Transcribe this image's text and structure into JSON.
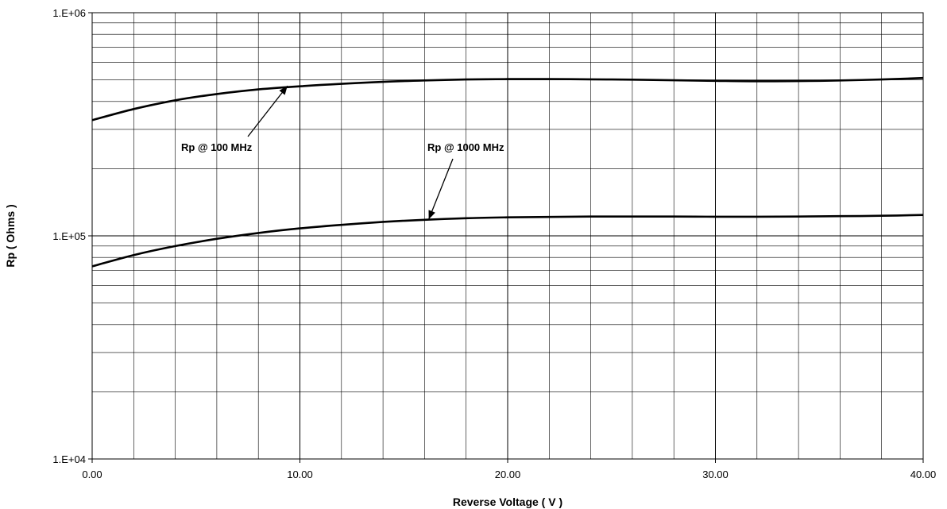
{
  "chart_data": {
    "type": "line",
    "title": "",
    "xlabel": "Reverse Voltage ( V )",
    "ylabel": "Rp ( Ohms )",
    "xlim": [
      0,
      40
    ],
    "ylim": [
      10000,
      1000000
    ],
    "yscale": "log",
    "grid": true,
    "x_ticks": [
      0,
      10,
      20,
      30,
      40
    ],
    "x_tick_labels": [
      "0.00",
      "10.00",
      "20.00",
      "30.00",
      "40.00"
    ],
    "y_ticks": [
      10000,
      100000,
      1000000
    ],
    "y_tick_labels": [
      "1.E+04",
      "1.E+05",
      "1.E+06"
    ],
    "series": [
      {
        "x": [
          0,
          2,
          4,
          6,
          8,
          10,
          12,
          14,
          16,
          18,
          20,
          22,
          24,
          26,
          28,
          30,
          32,
          34,
          36,
          38,
          40
        ],
        "values": [
          330000,
          370000,
          405000,
          432000,
          453000,
          468000,
          480000,
          490000,
          497000,
          502000,
          504000,
          504000,
          503000,
          501000,
          498000,
          495000,
          493000,
          494000,
          497000,
          502000,
          510000
        ]
      },
      {
        "x": [
          0,
          2,
          4,
          6,
          8,
          10,
          12,
          14,
          16,
          18,
          20,
          22,
          24,
          26,
          28,
          30,
          32,
          34,
          36,
          38,
          40
        ],
        "values": [
          73000,
          82000,
          90000,
          97000,
          103000,
          108000,
          112000,
          115500,
          118000,
          120000,
          121000,
          121500,
          122000,
          122000,
          122000,
          121800,
          121800,
          122000,
          122500,
          123000,
          124000
        ]
      }
    ],
    "annotations": [
      {
        "text": "Rp @ 100 MHz",
        "points_to": {
          "x": 9.4,
          "y": 470000
        }
      },
      {
        "text": "Rp @ 1000 MHz",
        "points_to": {
          "x": 16.2,
          "y": 118500
        }
      }
    ]
  }
}
